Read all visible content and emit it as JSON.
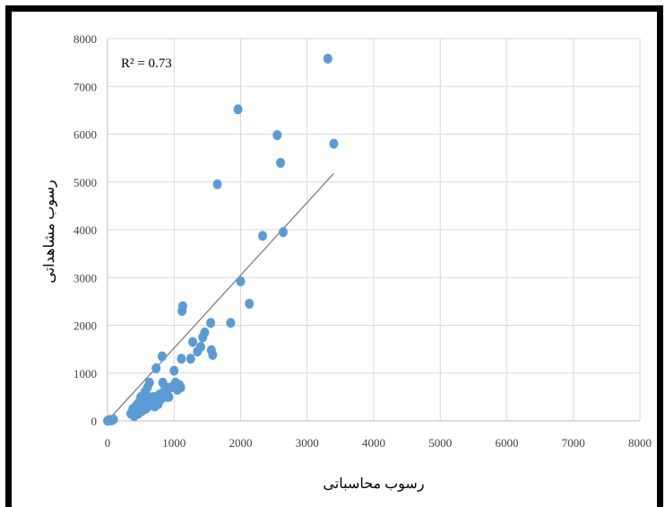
{
  "chart_data": {
    "type": "scatter",
    "title": "",
    "xlabel": "رسوب محاسباتی",
    "ylabel": "رسوب مشاهداتی",
    "annotation": "R² = 0.73",
    "xlim": [
      0,
      8000
    ],
    "ylim": [
      0,
      8000
    ],
    "xticks": [
      "0",
      "1000",
      "2000",
      "3000",
      "4000",
      "5000",
      "6000",
      "7000",
      "8000"
    ],
    "yticks": [
      "0",
      "1000",
      "2000",
      "3000",
      "4000",
      "5000",
      "6000",
      "7000",
      "8000"
    ],
    "grid": true,
    "legend": "none",
    "marker_color": "#5b9bd5",
    "trendline_color": "#7f7f7f",
    "trendline": {
      "x": [
        0,
        3400
      ],
      "y": [
        0,
        5180
      ]
    },
    "points": [
      {
        "x": 0,
        "y": 0
      },
      {
        "x": 30,
        "y": 20
      },
      {
        "x": 60,
        "y": 10
      },
      {
        "x": 90,
        "y": 30
      },
      {
        "x": 350,
        "y": 150
      },
      {
        "x": 380,
        "y": 250
      },
      {
        "x": 400,
        "y": 100
      },
      {
        "x": 420,
        "y": 300
      },
      {
        "x": 430,
        "y": 200
      },
      {
        "x": 450,
        "y": 350
      },
      {
        "x": 460,
        "y": 150
      },
      {
        "x": 480,
        "y": 400
      },
      {
        "x": 490,
        "y": 250
      },
      {
        "x": 500,
        "y": 500
      },
      {
        "x": 510,
        "y": 200
      },
      {
        "x": 520,
        "y": 300
      },
      {
        "x": 540,
        "y": 450
      },
      {
        "x": 550,
        "y": 350
      },
      {
        "x": 560,
        "y": 600
      },
      {
        "x": 570,
        "y": 250
      },
      {
        "x": 580,
        "y": 400
      },
      {
        "x": 600,
        "y": 700
      },
      {
        "x": 610,
        "y": 300
      },
      {
        "x": 620,
        "y": 500
      },
      {
        "x": 630,
        "y": 800
      },
      {
        "x": 640,
        "y": 350
      },
      {
        "x": 650,
        "y": 450
      },
      {
        "x": 660,
        "y": 400
      },
      {
        "x": 680,
        "y": 350
      },
      {
        "x": 700,
        "y": 500
      },
      {
        "x": 710,
        "y": 300
      },
      {
        "x": 720,
        "y": 450
      },
      {
        "x": 730,
        "y": 1100
      },
      {
        "x": 750,
        "y": 400
      },
      {
        "x": 760,
        "y": 350
      },
      {
        "x": 780,
        "y": 550
      },
      {
        "x": 800,
        "y": 450
      },
      {
        "x": 820,
        "y": 1350
      },
      {
        "x": 830,
        "y": 800
      },
      {
        "x": 840,
        "y": 600
      },
      {
        "x": 860,
        "y": 500
      },
      {
        "x": 870,
        "y": 700
      },
      {
        "x": 880,
        "y": 550
      },
      {
        "x": 900,
        "y": 650
      },
      {
        "x": 920,
        "y": 500
      },
      {
        "x": 950,
        "y": 700
      },
      {
        "x": 1000,
        "y": 1050
      },
      {
        "x": 1020,
        "y": 800
      },
      {
        "x": 1050,
        "y": 650
      },
      {
        "x": 1080,
        "y": 750
      },
      {
        "x": 1100,
        "y": 700
      },
      {
        "x": 1110,
        "y": 1300
      },
      {
        "x": 1120,
        "y": 2300
      },
      {
        "x": 1130,
        "y": 2400
      },
      {
        "x": 1250,
        "y": 1300
      },
      {
        "x": 1280,
        "y": 1650
      },
      {
        "x": 1350,
        "y": 1450
      },
      {
        "x": 1400,
        "y": 1550
      },
      {
        "x": 1430,
        "y": 1750
      },
      {
        "x": 1460,
        "y": 1850
      },
      {
        "x": 1550,
        "y": 2050
      },
      {
        "x": 1560,
        "y": 1480
      },
      {
        "x": 1580,
        "y": 1380
      },
      {
        "x": 1650,
        "y": 4950
      },
      {
        "x": 1850,
        "y": 2050
      },
      {
        "x": 1960,
        "y": 6520
      },
      {
        "x": 2000,
        "y": 2920
      },
      {
        "x": 2130,
        "y": 2450
      },
      {
        "x": 2330,
        "y": 3870
      },
      {
        "x": 2550,
        "y": 5980
      },
      {
        "x": 2600,
        "y": 5400
      },
      {
        "x": 2640,
        "y": 3950
      },
      {
        "x": 3310,
        "y": 7580
      },
      {
        "x": 3400,
        "y": 5800
      }
    ]
  }
}
